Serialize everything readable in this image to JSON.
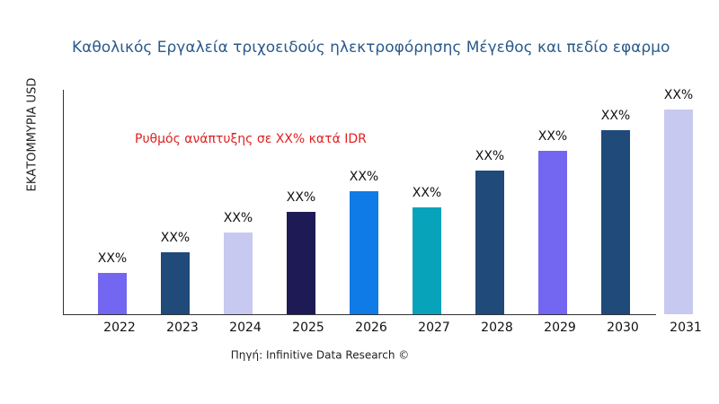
{
  "chart_data": {
    "type": "bar",
    "title": "Καθολικός Εργαλεία τριχοειδούς ηλεκτροφόρησης Μέγεθος και πεδίο εφαρμο",
    "y_label": "ΕΚΑΤΟΜΜΥΡΙΑ USD",
    "annotation": "Ρυθμός ανάπτυξης σε XX% κατά IDR",
    "source": "Πηγή: Infinitive Data Research ©",
    "categories": [
      "2022",
      "2023",
      "2024",
      "2025",
      "2026",
      "2027",
      "2028",
      "2029",
      "2030",
      "2031"
    ],
    "values": [
      46,
      69,
      91,
      114,
      137,
      119,
      160,
      182,
      205,
      228
    ],
    "value_labels": [
      "XX%",
      "XX%",
      "XX%",
      "XX%",
      "XX%",
      "XX%",
      "XX%",
      "XX%",
      "XX%",
      "XX%"
    ],
    "colors": [
      "#7366f0",
      "#1f4a7a",
      "#c8c9f0",
      "#1e1a56",
      "#0e7be6",
      "#06a3bb",
      "#1f4a7a",
      "#7366f0",
      "#1f4a7a",
      "#c8c9f0"
    ],
    "ylim": [
      0,
      250
    ]
  }
}
